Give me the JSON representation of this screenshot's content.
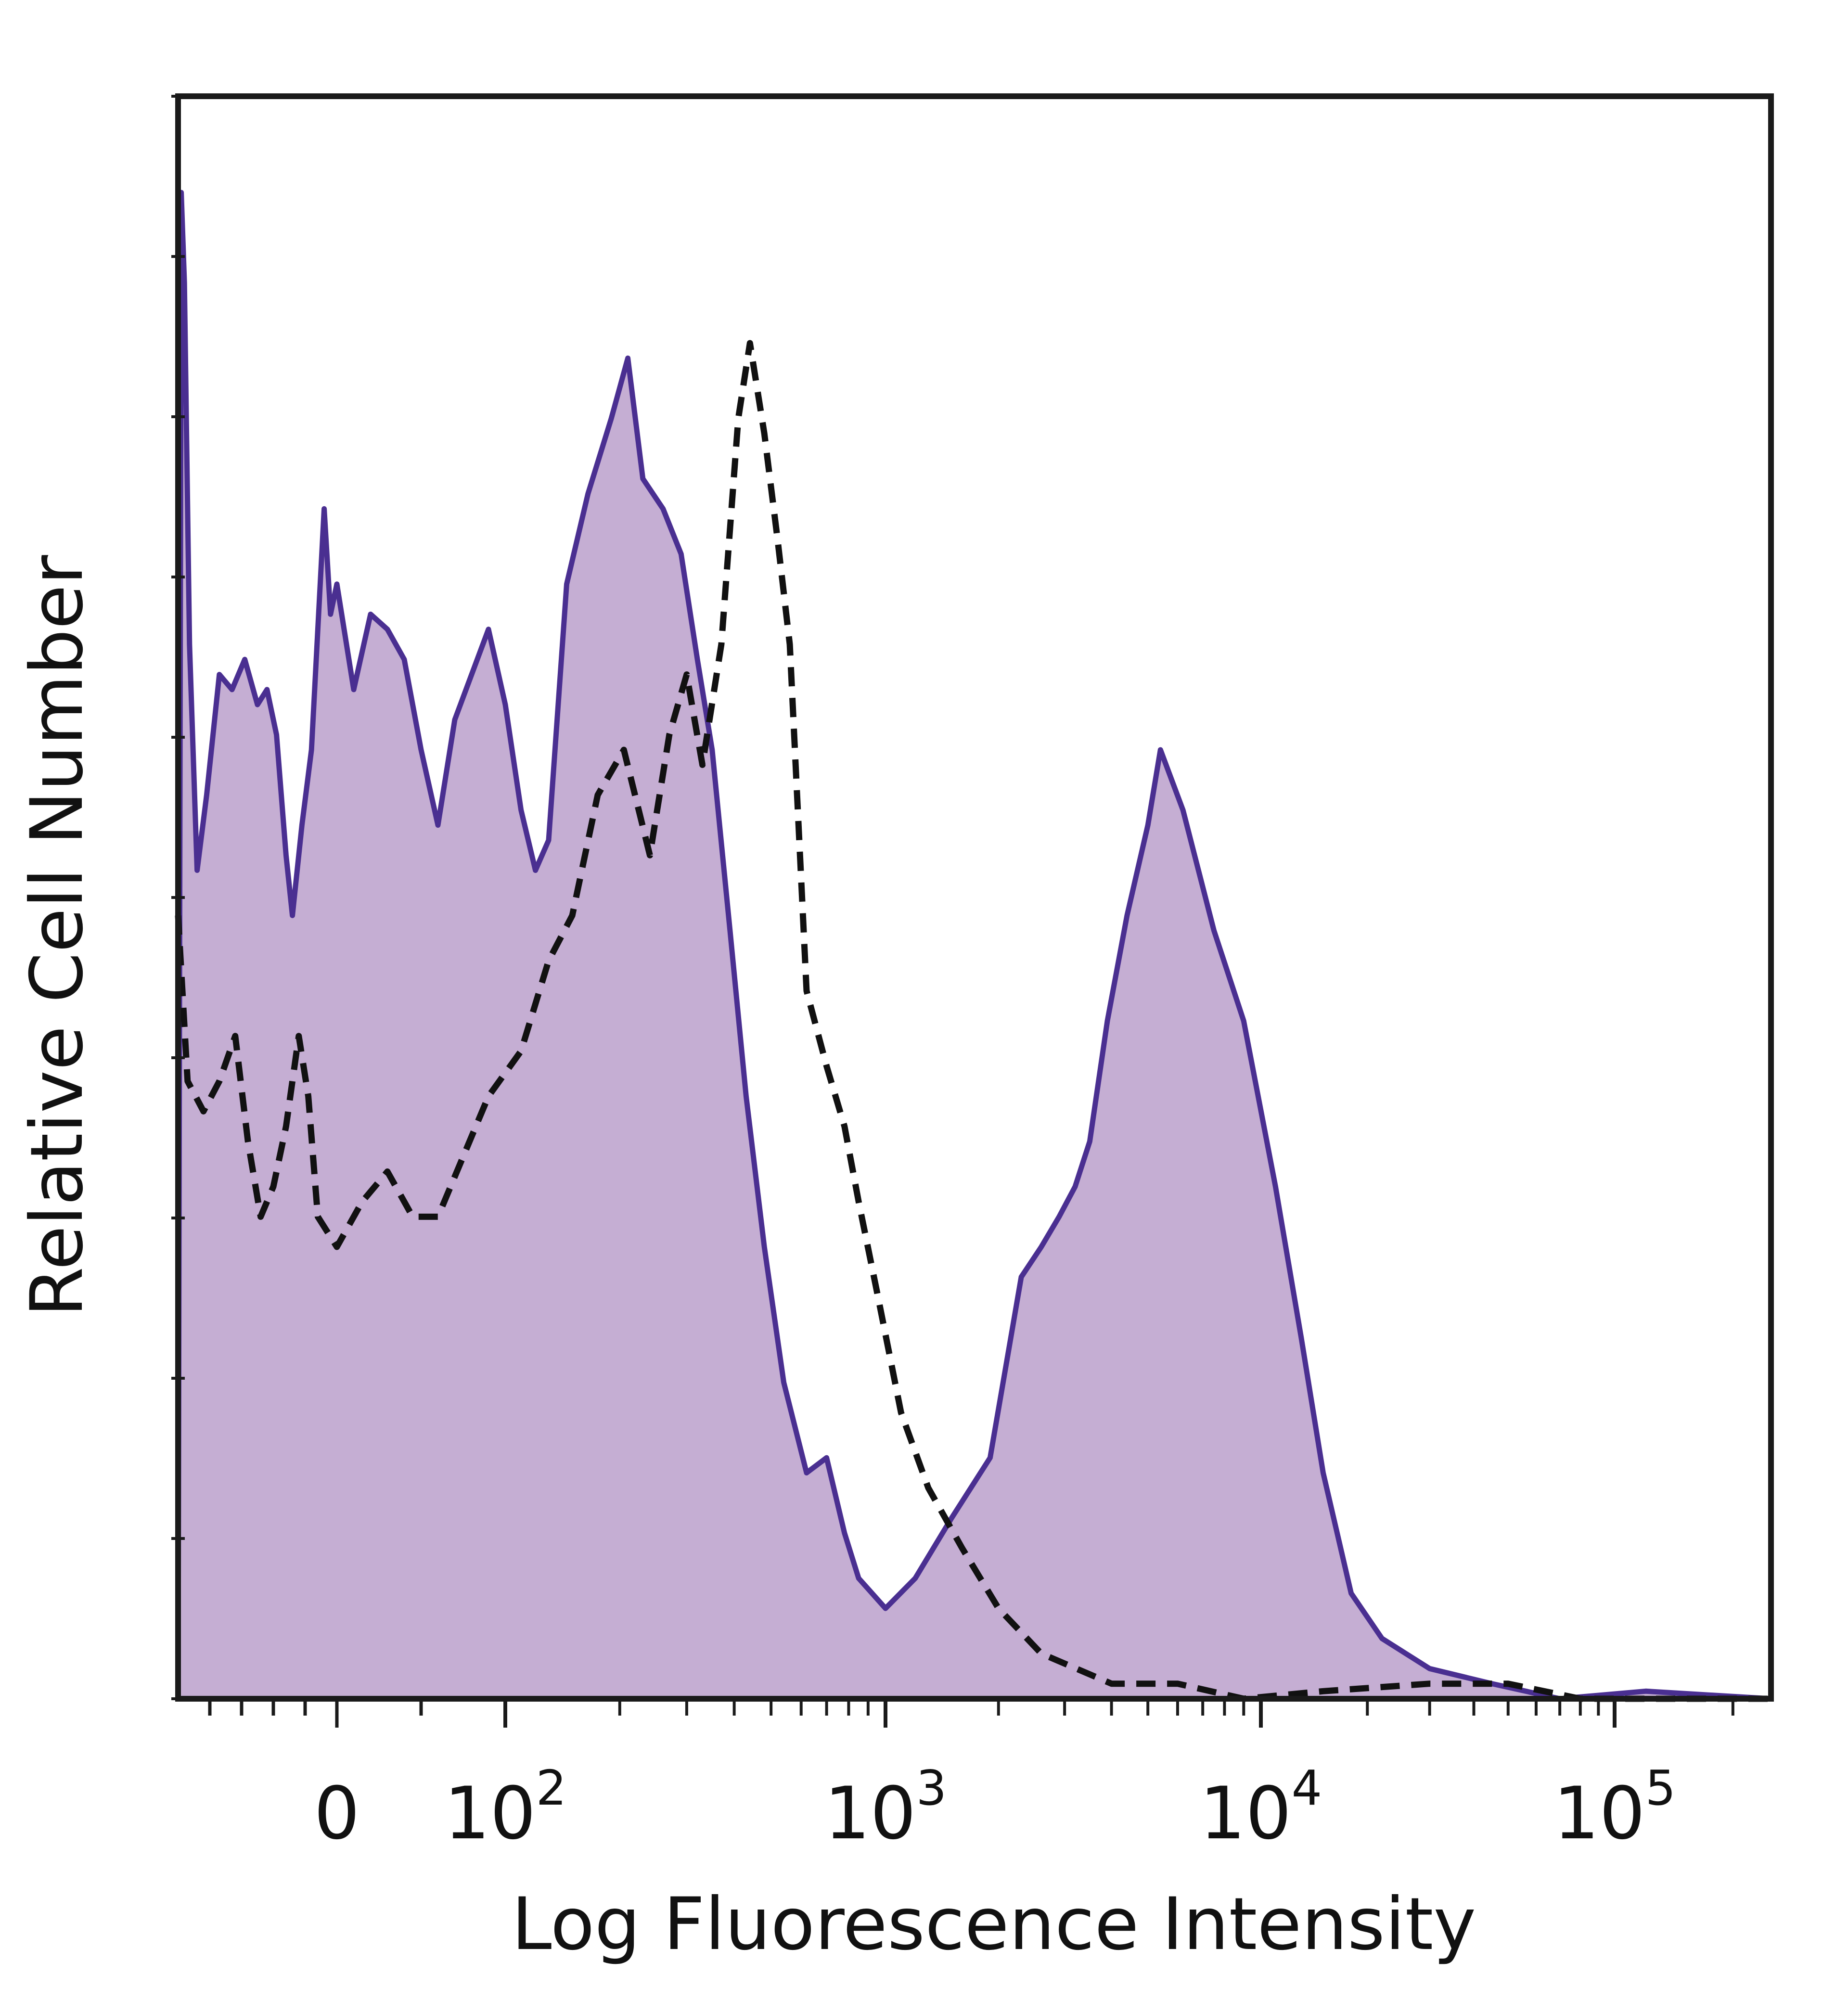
{
  "chart_data": {
    "type": "area",
    "xlabel": "Log Fluorescence Intensity",
    "ylabel": "Relative Cell Number",
    "x_scale": "biexponential",
    "x_ticks": [
      {
        "value": 0,
        "base": "0",
        "exp": ""
      },
      {
        "value": 100,
        "base": "10",
        "exp": "2"
      },
      {
        "value": 1000,
        "base": "10",
        "exp": "3"
      },
      {
        "value": 10000,
        "base": "10",
        "exp": "4"
      },
      {
        "value": 100000,
        "base": "10",
        "exp": "5"
      }
    ],
    "xlim": [
      -250,
      250000
    ],
    "ylim": [
      0,
      100
    ],
    "y_ticks_labeled": false,
    "grid": false,
    "legend": "none",
    "series": [
      {
        "style": "filled-solid",
        "line_color": "#4a2f91",
        "fill_color": "#c5aed3",
        "points": [
          [
            -250,
            0
          ],
          [
            -245,
            100
          ],
          [
            -240,
            94
          ],
          [
            -232,
            70
          ],
          [
            -220,
            55
          ],
          [
            -205,
            60
          ],
          [
            -185,
            68
          ],
          [
            -165,
            67
          ],
          [
            -145,
            69
          ],
          [
            -125,
            66
          ],
          [
            -110,
            67
          ],
          [
            -95,
            64
          ],
          [
            -80,
            56
          ],
          [
            -70,
            52
          ],
          [
            -55,
            58
          ],
          [
            -40,
            63
          ],
          [
            -20,
            79
          ],
          [
            -10,
            72
          ],
          [
            0,
            74
          ],
          [
            10,
            67
          ],
          [
            20,
            72
          ],
          [
            30,
            71
          ],
          [
            40,
            69
          ],
          [
            50,
            63
          ],
          [
            60,
            58
          ],
          [
            70,
            65
          ],
          [
            80,
            68
          ],
          [
            90,
            71
          ],
          [
            100,
            66
          ],
          [
            110,
            59
          ],
          [
            120,
            55
          ],
          [
            130,
            57
          ],
          [
            145,
            74
          ],
          [
            165,
            80
          ],
          [
            190,
            85
          ],
          [
            210,
            89
          ],
          [
            230,
            81
          ],
          [
            260,
            79
          ],
          [
            290,
            76
          ],
          [
            320,
            69
          ],
          [
            350,
            63
          ],
          [
            390,
            51
          ],
          [
            430,
            40
          ],
          [
            480,
            30
          ],
          [
            540,
            21
          ],
          [
            620,
            15
          ],
          [
            700,
            16
          ],
          [
            780,
            11
          ],
          [
            850,
            8
          ],
          [
            1000,
            6
          ],
          [
            1200,
            8
          ],
          [
            1500,
            12
          ],
          [
            1900,
            16
          ],
          [
            2300,
            28
          ],
          [
            2600,
            30
          ],
          [
            2900,
            32
          ],
          [
            3200,
            34
          ],
          [
            3500,
            37
          ],
          [
            3900,
            45
          ],
          [
            4400,
            52
          ],
          [
            5000,
            58
          ],
          [
            5400,
            63
          ],
          [
            6200,
            59
          ],
          [
            7500,
            51
          ],
          [
            9000,
            45
          ],
          [
            11000,
            34
          ],
          [
            13000,
            24
          ],
          [
            15000,
            15
          ],
          [
            18000,
            7
          ],
          [
            22000,
            4
          ],
          [
            30000,
            2
          ],
          [
            45000,
            1
          ],
          [
            70000,
            0
          ],
          [
            120000,
            0.5
          ],
          [
            250000,
            0
          ]
        ]
      },
      {
        "style": "dashed",
        "line_color": "#111111",
        "points": [
          [
            -250,
            52
          ],
          [
            -235,
            41
          ],
          [
            -210,
            39
          ],
          [
            -185,
            41
          ],
          [
            -160,
            44
          ],
          [
            -140,
            37
          ],
          [
            -120,
            32
          ],
          [
            -100,
            34
          ],
          [
            -80,
            38
          ],
          [
            -60,
            44
          ],
          [
            -45,
            40
          ],
          [
            -30,
            32
          ],
          [
            -15,
            31
          ],
          [
            0,
            30
          ],
          [
            15,
            33
          ],
          [
            30,
            35
          ],
          [
            45,
            32
          ],
          [
            60,
            32
          ],
          [
            75,
            36
          ],
          [
            90,
            40
          ],
          [
            110,
            43
          ],
          [
            130,
            49
          ],
          [
            150,
            52
          ],
          [
            175,
            60
          ],
          [
            205,
            63
          ],
          [
            240,
            56
          ],
          [
            270,
            64
          ],
          [
            300,
            68
          ],
          [
            330,
            62
          ],
          [
            370,
            70
          ],
          [
            410,
            85
          ],
          [
            440,
            90
          ],
          [
            480,
            84
          ],
          [
            520,
            77
          ],
          [
            560,
            70
          ],
          [
            620,
            47
          ],
          [
            700,
            42
          ],
          [
            780,
            38
          ],
          [
            850,
            33
          ],
          [
            950,
            27
          ],
          [
            1100,
            19
          ],
          [
            1300,
            14
          ],
          [
            1600,
            10
          ],
          [
            2000,
            6
          ],
          [
            2600,
            3
          ],
          [
            4000,
            1
          ],
          [
            6000,
            1
          ],
          [
            9000,
            0
          ],
          [
            15000,
            0.5
          ],
          [
            30000,
            1
          ],
          [
            50000,
            1
          ],
          [
            80000,
            0
          ],
          [
            250000,
            0
          ]
        ]
      }
    ]
  }
}
